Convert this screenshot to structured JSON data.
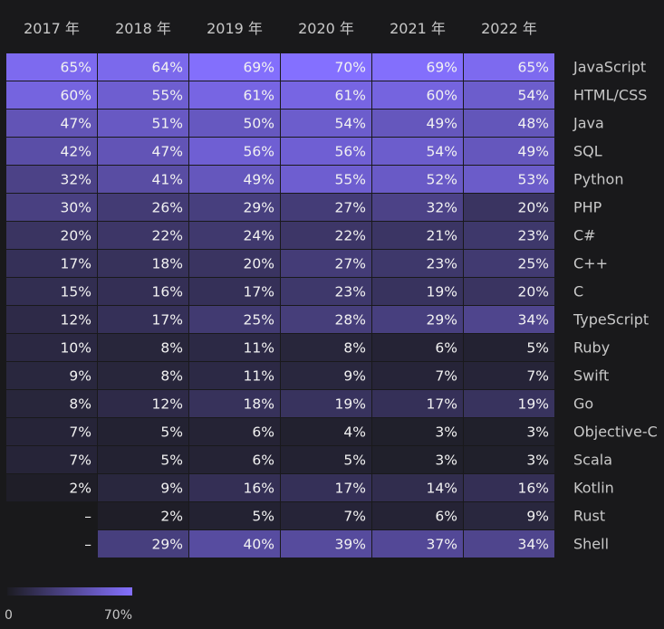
{
  "chart_data": {
    "type": "heatmap",
    "columns": [
      "2017 年",
      "2018 年",
      "2019 年",
      "2020 年",
      "2021 年",
      "2022 年"
    ],
    "rows": [
      "JavaScript",
      "HTML/CSS",
      "Java",
      "SQL",
      "Python",
      "PHP",
      "C#",
      "C++",
      "C",
      "TypeScript",
      "Ruby",
      "Swift",
      "Go",
      "Objective-C",
      "Scala",
      "Kotlin",
      "Rust",
      "Shell"
    ],
    "values": [
      [
        65,
        64,
        69,
        70,
        69,
        65
      ],
      [
        60,
        55,
        61,
        61,
        60,
        54
      ],
      [
        47,
        51,
        50,
        54,
        49,
        48
      ],
      [
        42,
        47,
        56,
        56,
        54,
        49
      ],
      [
        32,
        41,
        49,
        55,
        52,
        53
      ],
      [
        30,
        26,
        29,
        27,
        32,
        20
      ],
      [
        20,
        22,
        24,
        22,
        21,
        23
      ],
      [
        17,
        18,
        20,
        27,
        23,
        25
      ],
      [
        15,
        16,
        17,
        23,
        19,
        20
      ],
      [
        12,
        17,
        25,
        28,
        29,
        34
      ],
      [
        10,
        8,
        11,
        8,
        6,
        5
      ],
      [
        9,
        8,
        11,
        9,
        7,
        7
      ],
      [
        8,
        12,
        18,
        19,
        17,
        19
      ],
      [
        7,
        5,
        6,
        4,
        3,
        3
      ],
      [
        7,
        5,
        6,
        5,
        3,
        3
      ],
      [
        2,
        9,
        16,
        17,
        14,
        16
      ],
      [
        null,
        2,
        5,
        7,
        6,
        9
      ],
      [
        null,
        29,
        40,
        39,
        37,
        34
      ]
    ],
    "value_suffix": "%",
    "missing_label": "–",
    "color_scale": {
      "min": 0,
      "max": 70,
      "min_label": "0",
      "max_label": "70%",
      "min_color": "#1c1c22",
      "max_color": "#8470ff"
    }
  }
}
